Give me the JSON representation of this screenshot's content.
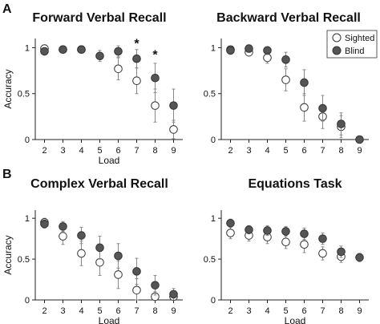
{
  "figure": {
    "panel_labels": [
      "A",
      "B"
    ]
  },
  "legend": {
    "entries": [
      {
        "label": "Sighted",
        "fill": "#ffffff",
        "stroke": "#333333"
      },
      {
        "label": "Blind",
        "fill": "#555555",
        "stroke": "#333333"
      }
    ],
    "placement": "top-right of Backward Verbal Recall panel"
  },
  "colors": {
    "sighted_fill": "#ffffff",
    "blind_fill": "#555555",
    "marker_stroke": "#333333",
    "axis": "#222222",
    "errorbar": "#888888"
  },
  "chart_data": [
    {
      "type": "scatter",
      "title": "Forward Verbal Recall",
      "xlabel": "Load",
      "ylabel": "Accuracy",
      "x": [
        2,
        3,
        4,
        5,
        6,
        7,
        8,
        9
      ],
      "ylim": [
        0,
        1.1
      ],
      "yticks": [
        0,
        0.5,
        1
      ],
      "grid": false,
      "series": [
        {
          "name": "Sighted",
          "values": [
            0.99,
            0.98,
            0.98,
            null,
            0.77,
            0.64,
            0.37,
            0.11
          ],
          "errors": [
            0.03,
            0.03,
            0.03,
            null,
            0.12,
            0.14,
            0.18,
            0.1
          ]
        },
        {
          "name": "Blind",
          "values": [
            0.96,
            0.98,
            0.98,
            0.91,
            0.96,
            0.88,
            0.67,
            0.37
          ],
          "errors": [
            0.04,
            0.03,
            0.03,
            0.06,
            0.06,
            0.1,
            0.16,
            0.18
          ]
        }
      ],
      "annotations": [
        {
          "x": 7,
          "y": 1.05,
          "text": "*"
        },
        {
          "x": 8,
          "y": 0.93,
          "text": "*"
        }
      ]
    },
    {
      "type": "scatter",
      "title": "Backward Verbal Recall",
      "xlabel": "",
      "ylabel": "",
      "x": [
        2,
        3,
        4,
        5,
        6,
        7,
        8,
        9
      ],
      "ylim": [
        0,
        1.1
      ],
      "yticks": [
        0,
        0.5,
        1
      ],
      "grid": false,
      "series": [
        {
          "name": "Sighted",
          "values": [
            0.98,
            0.95,
            0.89,
            0.65,
            0.35,
            0.25,
            0.14,
            null
          ],
          "errors": [
            0.03,
            0.04,
            0.06,
            0.12,
            0.15,
            0.13,
            0.12,
            null
          ]
        },
        {
          "name": "Blind",
          "values": [
            0.97,
            0.99,
            0.97,
            0.87,
            0.62,
            0.34,
            0.17,
            0.0
          ],
          "errors": [
            0.03,
            0.03,
            0.04,
            0.08,
            0.14,
            0.14,
            0.12,
            0.0
          ]
        }
      ],
      "annotations": []
    },
    {
      "type": "scatter",
      "title": "Complex Verbal Recall",
      "xlabel": "Load",
      "ylabel": "Accuracy",
      "x": [
        2,
        3,
        4,
        5,
        6,
        7,
        8,
        9
      ],
      "ylim": [
        0,
        1.1
      ],
      "yticks": [
        0,
        0.5,
        1
      ],
      "grid": false,
      "series": [
        {
          "name": "Sighted",
          "values": [
            0.95,
            0.78,
            0.57,
            0.46,
            0.31,
            0.12,
            0.04,
            0.04
          ],
          "errors": [
            0.05,
            0.1,
            0.15,
            0.16,
            0.17,
            0.14,
            0.06,
            0.06
          ]
        },
        {
          "name": "Blind",
          "values": [
            0.93,
            0.9,
            0.79,
            0.64,
            0.54,
            0.35,
            0.18,
            0.07
          ],
          "errors": [
            0.05,
            0.06,
            0.1,
            0.14,
            0.15,
            0.16,
            0.12,
            0.07
          ]
        }
      ],
      "annotations": []
    },
    {
      "type": "scatter",
      "title": "Equations Task",
      "xlabel": "Load",
      "ylabel": "",
      "x": [
        2,
        3,
        4,
        5,
        6,
        7,
        8,
        9
      ],
      "ylim": [
        0,
        1.1
      ],
      "yticks": [
        0,
        0.5,
        1
      ],
      "grid": false,
      "series": [
        {
          "name": "Sighted",
          "values": [
            0.82,
            0.79,
            0.77,
            0.71,
            0.68,
            0.57,
            0.53,
            null
          ],
          "errors": [
            0.07,
            0.07,
            0.08,
            0.08,
            0.1,
            0.08,
            0.07,
            null
          ]
        },
        {
          "name": "Blind",
          "values": [
            0.94,
            0.86,
            0.85,
            0.84,
            0.81,
            0.75,
            0.59,
            0.52
          ],
          "errors": [
            0.05,
            0.05,
            0.06,
            0.06,
            0.07,
            0.07,
            0.07,
            0.05
          ]
        }
      ],
      "annotations": []
    }
  ]
}
